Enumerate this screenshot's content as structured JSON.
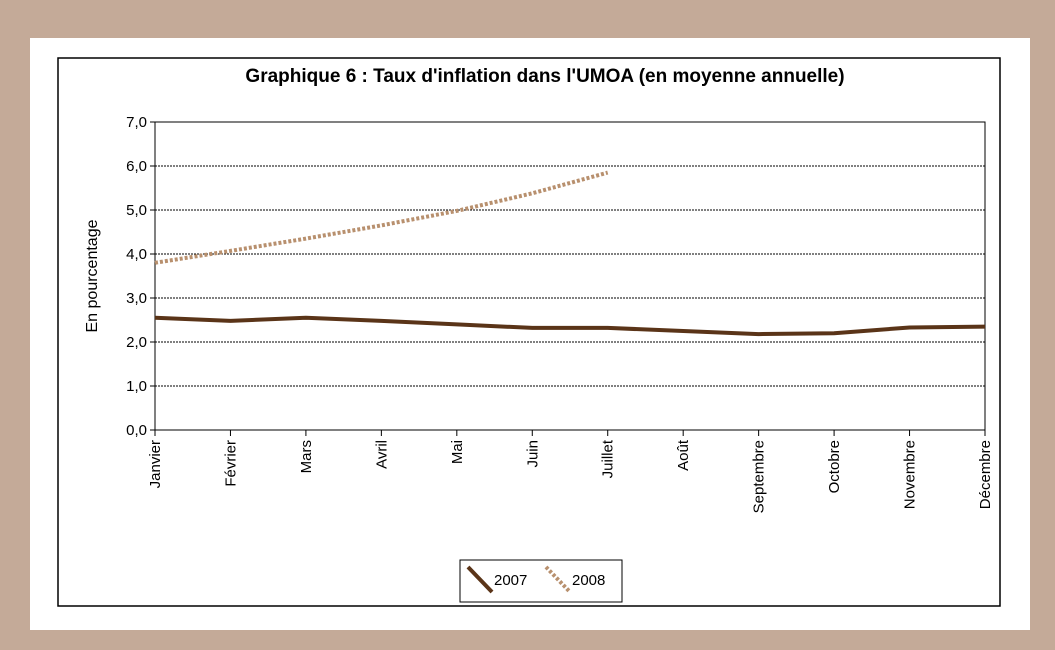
{
  "chart_data": {
    "type": "line",
    "title": "Graphique 6 : Taux d'inflation dans l'UMOA (en moyenne annuelle)",
    "y_label": "En pourcentage",
    "categories": [
      "Janvier",
      "Février",
      "Mars",
      "Avril",
      "Mai",
      "Juin",
      "Juillet",
      "Août",
      "Septembre",
      "Octobre",
      "Novembre",
      "Décembre"
    ],
    "series": [
      {
        "name": "2007",
        "color": "#5a3418",
        "style": "solid",
        "values": [
          2.55,
          2.48,
          2.55,
          2.48,
          2.4,
          2.32,
          2.32,
          2.25,
          2.18,
          2.2,
          2.33,
          2.35
        ]
      },
      {
        "name": "2008",
        "color": "#b8906e",
        "style": "dotted",
        "values": [
          3.8,
          4.07,
          4.35,
          4.65,
          4.98,
          5.38,
          5.85,
          null,
          null,
          null,
          null,
          null
        ]
      }
    ],
    "ylim": [
      0,
      7
    ],
    "yticks": [
      {
        "value": 0,
        "label": "0,0"
      },
      {
        "value": 1,
        "label": "1,0"
      },
      {
        "value": 2,
        "label": "2,0"
      },
      {
        "value": 3,
        "label": "3,0"
      },
      {
        "value": 4,
        "label": "4,0"
      },
      {
        "value": 5,
        "label": "5,0"
      },
      {
        "value": 6,
        "label": "6,0"
      },
      {
        "value": 7,
        "label": "7,0"
      }
    ],
    "grid": true,
    "legend": "bottom"
  }
}
